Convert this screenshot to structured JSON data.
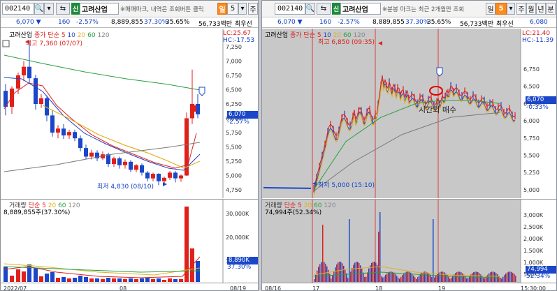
{
  "left": {
    "toolbar": {
      "code": "002140",
      "search_icon": "search-icon",
      "tag": "신",
      "name": "고려산업",
      "notice": "※매매마크, 내역은 조회버튼 클릭",
      "period": "일",
      "period_num": "5",
      "period_next": "주"
    },
    "quote": {
      "price": "6,070",
      "change": "160",
      "rate": "-2.57%",
      "volume": "8,889,855",
      "vol_rate": "37.30%",
      "turnover": "35.65%",
      "amount": "56,733백만",
      "note": "최우선"
    },
    "price_chart": {
      "legend_name": "고려산업",
      "legend_ma": "종가 단순 5",
      "ma_periods": [
        "10",
        "20",
        "60",
        "120"
      ],
      "lc_label": "LC:25.67",
      "hc_label": "HC:-17.53",
      "high_label": "최고 7,360 (07/07)",
      "low_label": "최저 4,830 (08/10)",
      "y_ticks": [
        "7,250",
        "7,000",
        "6,750",
        "6,500",
        "6,250",
        "6,000",
        "5,750",
        "5,500",
        "5,250",
        "5,000",
        "4,750"
      ],
      "current_price": "6,070",
      "current_rate": "-2.57%"
    },
    "volume_chart": {
      "legend_name": "거래량",
      "legend_ma": "단순 5",
      "ma_periods": [
        "20",
        "60",
        "120"
      ],
      "vol_label": "8,889,855주(37.30%)",
      "y_ticks": [
        "30,000K",
        "20,000K",
        "10,000K"
      ],
      "current_vol": "8,890K",
      "current_vol_rate": "37.30%"
    },
    "x_ticks": [
      "2022/07",
      "08",
      "08/19"
    ]
  },
  "right": {
    "toolbar": {
      "code": "002140",
      "tag": "신",
      "name": "고려산업",
      "notice": "※분봉 마크는 최근 2개월만 조회",
      "period": "일",
      "period_num": "5",
      "p1": "주",
      "p2": "월",
      "p3": "년",
      "p4": "분"
    },
    "quote": {
      "price": "6,070",
      "change": "160",
      "rate": "-2.57%",
      "volume": "8,889,855",
      "vol_rate": "37.30%",
      "turnover": "35.65%",
      "amount": "56,733백만",
      "note": "최우선",
      "extra": "6,080"
    },
    "price_chart": {
      "legend_name": "고려산업",
      "legend_ma": "종가 단순 5",
      "ma_periods": [
        "10",
        "20",
        "60",
        "120"
      ],
      "lc_label": "LC:21.40",
      "hc_label": "HC:-11.39",
      "high_label": "최고 6,850 (09:35)",
      "low_label": "최저 5,000 (15:10)",
      "annotation": "시간외 매수",
      "y_ticks": [
        "6,750",
        "6,500",
        "6,250",
        "6,000",
        "5,750",
        "5,500",
        "5,250",
        "5,000"
      ],
      "current_price": "6,070",
      "current_rate": "-0.33%"
    },
    "volume_chart": {
      "legend_name": "거래량",
      "legend_ma": "단순 5",
      "ma_periods": [
        "20",
        "60",
        "120"
      ],
      "vol_label": "74,994주(52.34%)",
      "y_ticks": [
        "3,000K",
        "2,500K",
        "2,000K",
        "1,500K",
        "1,000K",
        "500K"
      ],
      "current_vol": "74,994",
      "current_vol_rate": "52.34%"
    },
    "x_ticks": [
      "08/16",
      "17",
      "18",
      "19",
      "15:30:00"
    ]
  },
  "colors": {
    "up": "#e0201b",
    "down": "#1a47c9",
    "ma5": "#e0201b",
    "ma10": "#2340c8",
    "ma20": "#e0b020",
    "ma60": "#28a040",
    "ma120": "#7a7a7a"
  }
}
